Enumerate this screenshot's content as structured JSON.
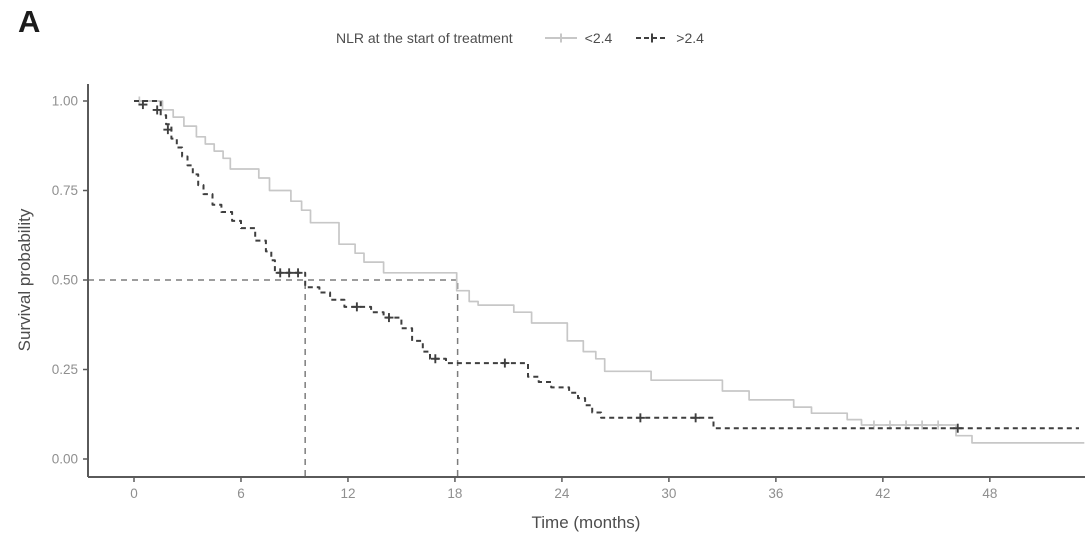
{
  "figure": {
    "panel_label": "A",
    "background_color": "#ffffff"
  },
  "legend": {
    "title": "NLR at the start of treatment",
    "entries": [
      {
        "label": "<2.4"
      },
      {
        "label": ">2.4"
      }
    ],
    "position": "top-center"
  },
  "chart_data": {
    "type": "line",
    "subtype": "kaplan-meier-step-curves",
    "title": "",
    "xlabel": "Time (months)",
    "ylabel": "Survival probability",
    "xlim": [
      -2.6,
      53.4
    ],
    "ylim": [
      0,
      1.0
    ],
    "x_ticks": [
      0,
      6,
      12,
      18,
      24,
      30,
      36,
      42,
      48
    ],
    "y_tick_labels": [
      "0.00",
      "0.25",
      "0.50",
      "0.75",
      "1.00"
    ],
    "grid": false,
    "colors": {
      "axis_line": "#5a5a5a",
      "tick_label": "#8f8f8f",
      "axis_title": "#4d4d4d",
      "median_line": "#7d7d7d"
    },
    "series": [
      {
        "name": "<2.4",
        "color": "#c7c7c7",
        "line_style": "solid",
        "steps": [
          [
            0,
            1.0
          ],
          [
            1.6,
            0.975
          ],
          [
            2.2,
            0.955
          ],
          [
            2.8,
            0.93
          ],
          [
            3.5,
            0.9
          ],
          [
            4.0,
            0.88
          ],
          [
            4.5,
            0.86
          ],
          [
            5.0,
            0.84
          ],
          [
            5.4,
            0.81
          ],
          [
            7.0,
            0.785
          ],
          [
            7.6,
            0.75
          ],
          [
            8.8,
            0.72
          ],
          [
            9.4,
            0.695
          ],
          [
            9.9,
            0.66
          ],
          [
            11.5,
            0.6
          ],
          [
            12.4,
            0.575
          ],
          [
            12.9,
            0.55
          ],
          [
            14.0,
            0.52
          ],
          [
            18.1,
            0.47
          ],
          [
            18.8,
            0.44
          ],
          [
            19.3,
            0.43
          ],
          [
            21.3,
            0.41
          ],
          [
            22.3,
            0.38
          ],
          [
            24.3,
            0.33
          ],
          [
            25.2,
            0.3
          ],
          [
            25.9,
            0.28
          ],
          [
            26.4,
            0.245
          ],
          [
            29.0,
            0.22
          ],
          [
            33.0,
            0.19
          ],
          [
            34.5,
            0.165
          ],
          [
            37.0,
            0.145
          ],
          [
            38.0,
            0.128
          ],
          [
            40.0,
            0.11
          ],
          [
            40.8,
            0.095
          ],
          [
            46.1,
            0.065
          ],
          [
            47.0,
            0.045
          ],
          [
            53.3,
            0.045
          ]
        ],
        "censor_marks": [
          [
            0.3,
            1.0
          ],
          [
            41.5,
            0.095
          ],
          [
            42.4,
            0.095
          ],
          [
            43.3,
            0.095
          ],
          [
            44.2,
            0.095
          ],
          [
            45.1,
            0.095
          ]
        ]
      },
      {
        "name": ">2.4",
        "color": "#3f3f3f",
        "line_style": "dashed",
        "steps": [
          [
            0,
            1.0
          ],
          [
            1.5,
            0.96
          ],
          [
            1.8,
            0.935
          ],
          [
            2.1,
            0.895
          ],
          [
            2.4,
            0.87
          ],
          [
            2.7,
            0.845
          ],
          [
            3.0,
            0.82
          ],
          [
            3.3,
            0.795
          ],
          [
            3.6,
            0.765
          ],
          [
            3.9,
            0.74
          ],
          [
            4.4,
            0.71
          ],
          [
            4.9,
            0.69
          ],
          [
            5.5,
            0.665
          ],
          [
            6.0,
            0.645
          ],
          [
            6.8,
            0.61
          ],
          [
            7.4,
            0.58
          ],
          [
            7.7,
            0.555
          ],
          [
            7.9,
            0.52
          ],
          [
            9.6,
            0.48
          ],
          [
            10.4,
            0.465
          ],
          [
            11.0,
            0.445
          ],
          [
            11.8,
            0.425
          ],
          [
            13.3,
            0.41
          ],
          [
            14.0,
            0.395
          ],
          [
            15.0,
            0.365
          ],
          [
            15.6,
            0.33
          ],
          [
            16.2,
            0.3
          ],
          [
            16.6,
            0.28
          ],
          [
            17.5,
            0.268
          ],
          [
            22.1,
            0.23
          ],
          [
            22.7,
            0.215
          ],
          [
            23.4,
            0.2
          ],
          [
            24.4,
            0.185
          ],
          [
            24.9,
            0.17
          ],
          [
            25.3,
            0.15
          ],
          [
            25.7,
            0.13
          ],
          [
            26.2,
            0.115
          ],
          [
            32.5,
            0.086
          ],
          [
            53.0,
            0.086
          ]
        ],
        "censor_marks": [
          [
            0.5,
            0.99
          ],
          [
            1.3,
            0.975
          ],
          [
            1.9,
            0.92
          ],
          [
            8.2,
            0.52
          ],
          [
            8.7,
            0.52
          ],
          [
            9.2,
            0.52
          ],
          [
            12.5,
            0.425
          ],
          [
            14.3,
            0.395
          ],
          [
            16.9,
            0.28
          ],
          [
            20.8,
            0.268
          ],
          [
            28.4,
            0.115
          ],
          [
            31.5,
            0.115
          ],
          [
            46.2,
            0.086
          ]
        ]
      }
    ],
    "median_annotations": {
      "survival_level": 0.5,
      "horizontal_line": {
        "y": 0.5,
        "x_from_axis": true,
        "x_to": 18.15
      },
      "vertical_lines": [
        {
          "x": 9.6
        },
        {
          "x": 18.15
        }
      ],
      "line_style": "dashed"
    },
    "legend_position": "top"
  }
}
